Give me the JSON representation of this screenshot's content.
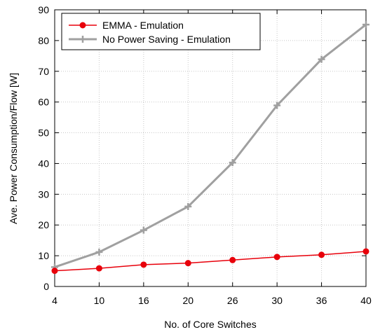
{
  "chart_data": {
    "type": "line",
    "title": "",
    "xlabel": "No. of Core Switches",
    "ylabel": "Ave. Power Consumption/Flow [W]",
    "categories": [
      "4",
      "10",
      "16",
      "20",
      "26",
      "30",
      "36",
      "40"
    ],
    "yticks": [
      "0",
      "10",
      "20",
      "30",
      "40",
      "50",
      "60",
      "70",
      "80",
      "90"
    ],
    "ylim": [
      0,
      90
    ],
    "grid": true,
    "legend_position": "top-left",
    "series": [
      {
        "name": "EMMA - Emulation",
        "color": "#e8000b",
        "marker": "circle",
        "values": [
          5.1,
          5.9,
          7.1,
          7.6,
          8.6,
          9.6,
          10.3,
          11.4
        ]
      },
      {
        "name": "No Power Saving - Emulation",
        "color": "#a0a0a0",
        "marker": "plus",
        "values": [
          6.3,
          11.2,
          18.3,
          26.0,
          40.3,
          58.9,
          73.9,
          85.2
        ]
      }
    ]
  }
}
